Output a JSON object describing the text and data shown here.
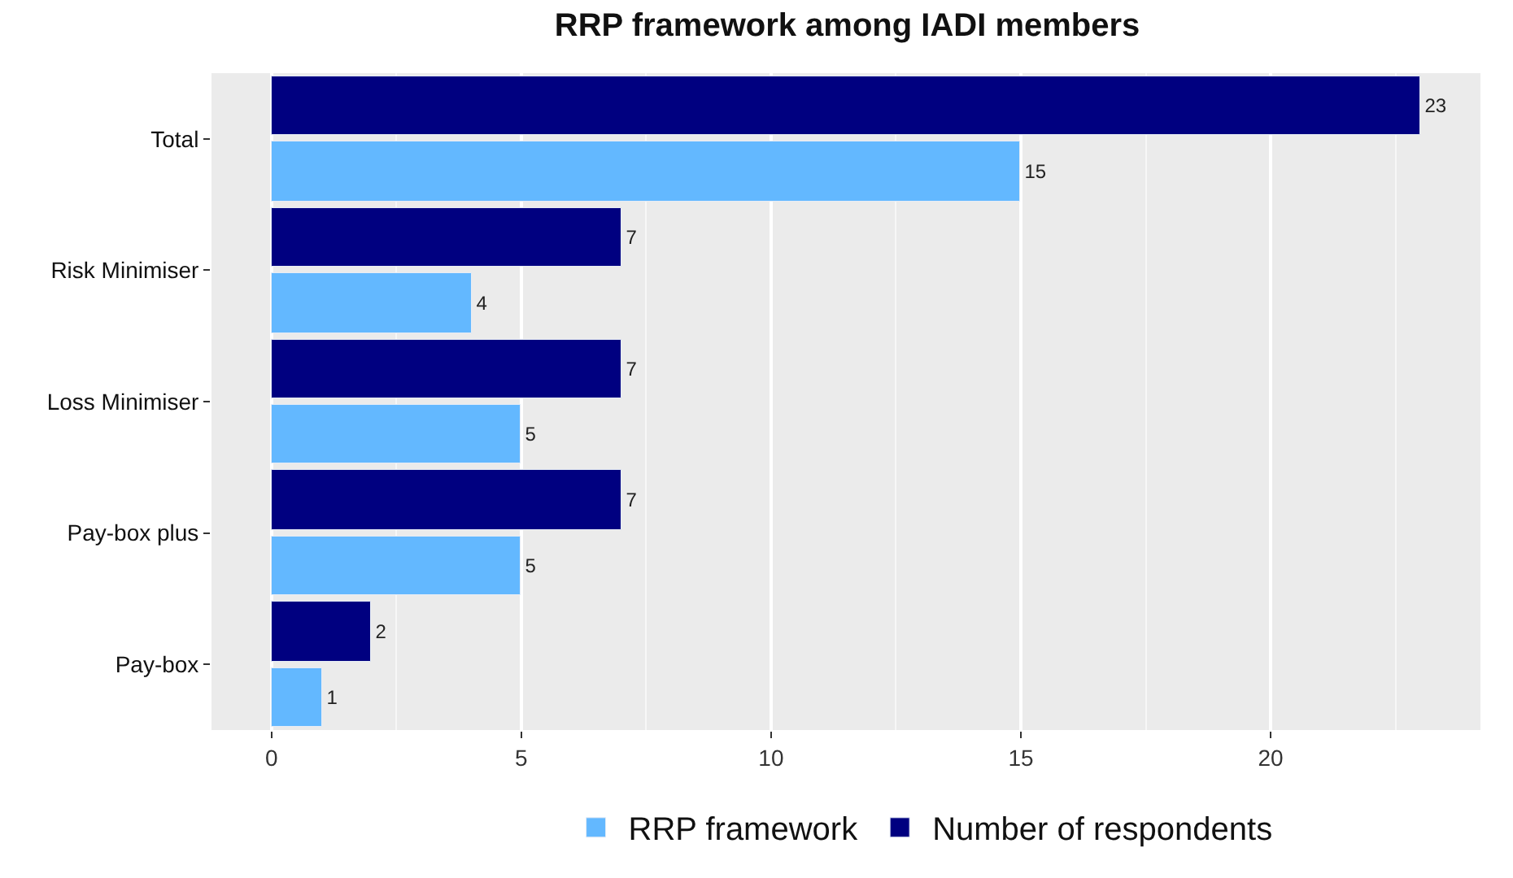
{
  "chart_data": {
    "type": "bar",
    "orientation": "horizontal",
    "title": "RRP framework among IADI members",
    "categories": [
      "Total",
      "Risk Minimiser",
      "Loss Minimiser",
      "Pay-box plus",
      "Pay-box"
    ],
    "series": [
      {
        "name": "RRP framework",
        "color": "#63b8ff",
        "values": [
          15,
          4,
          5,
          5,
          1
        ]
      },
      {
        "name": "Number of respondents",
        "color": "#000080",
        "values": [
          23,
          7,
          7,
          7,
          2
        ]
      }
    ],
    "xlim": [
      -1.2,
      24.2
    ],
    "xticks": [
      0,
      5,
      10,
      15,
      20
    ],
    "grid": "x",
    "legend": "bottom",
    "data_labels": true
  }
}
